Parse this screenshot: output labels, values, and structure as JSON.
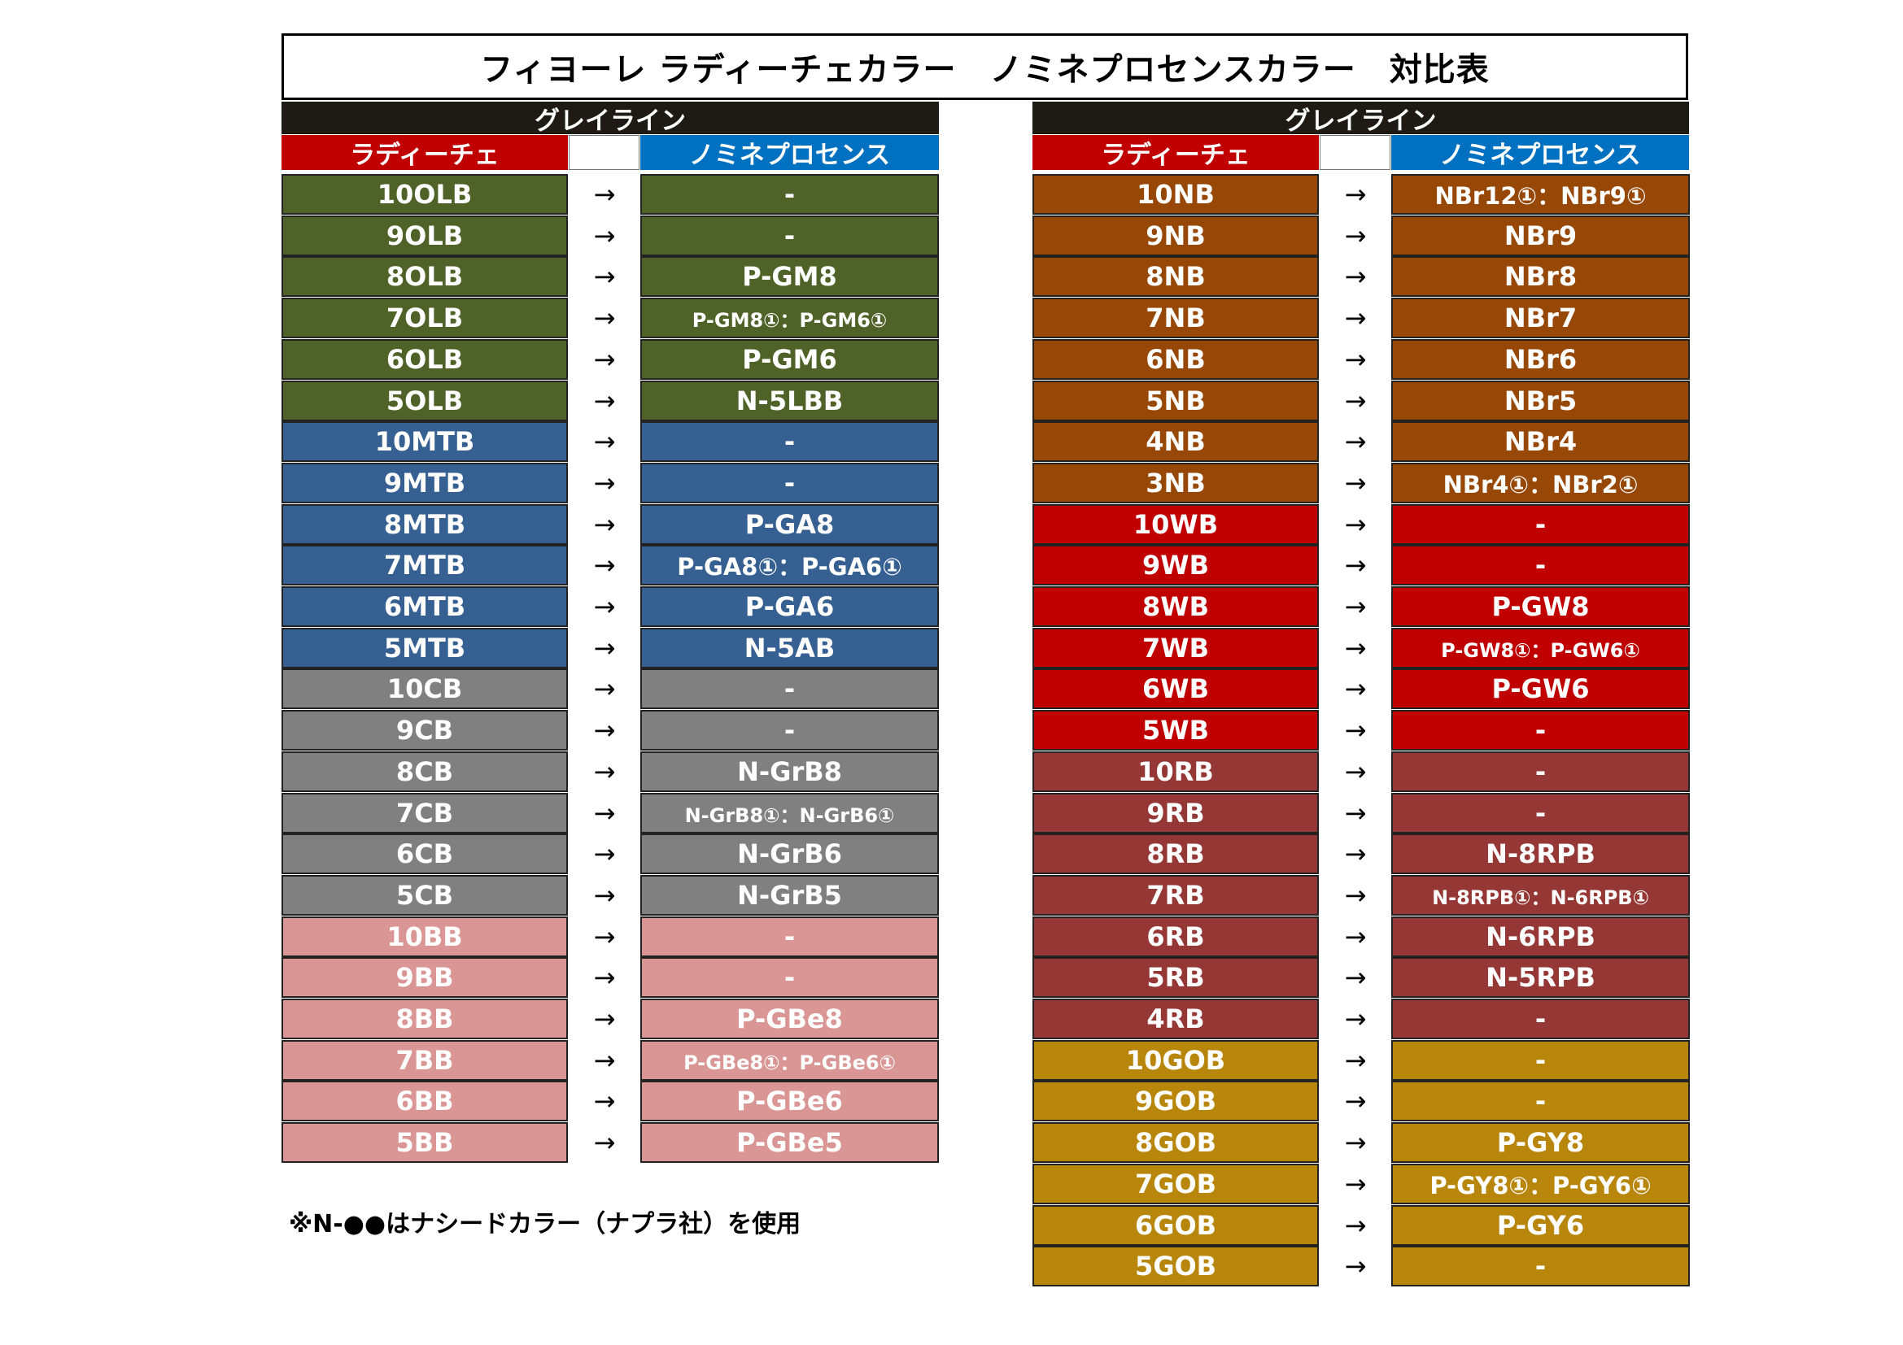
{
  "title": "フィヨーレ ラディーチェカラー　ノミネプロセンスカラー　対比表",
  "group_label": "グレイライン",
  "headers": {
    "left": "ラディーチェ",
    "right": "ノミネプロセンス"
  },
  "arrow": "→",
  "footnote": "※N-●●はナシードカラー（ナプラ社）を使用",
  "colors": {
    "OLB": "#4f6228",
    "MTB": "#366092",
    "CB": "#808080",
    "BB": "#da9694",
    "NB": "#974706",
    "WB": "#c00000",
    "RB": "#953735",
    "GOB": "#b8860b"
  },
  "left_rows": [
    {
      "from": "10OLB",
      "to": "-",
      "group": "OLB"
    },
    {
      "from": "9OLB",
      "to": "-",
      "group": "OLB"
    },
    {
      "from": "8OLB",
      "to": "P-GM8",
      "group": "OLB"
    },
    {
      "from": "7OLB",
      "to": "P-GM8①：P-GM6①",
      "group": "OLB",
      "size": "small"
    },
    {
      "from": "6OLB",
      "to": "P-GM6",
      "group": "OLB"
    },
    {
      "from": "5OLB",
      "to": "N-5LBB",
      "group": "OLB"
    },
    {
      "from": "10MTB",
      "to": "-",
      "group": "MTB"
    },
    {
      "from": "9MTB",
      "to": "-",
      "group": "MTB"
    },
    {
      "from": "8MTB",
      "to": "P-GA8",
      "group": "MTB"
    },
    {
      "from": "7MTB",
      "to": "P-GA8①：P-GA6①",
      "group": "MTB",
      "size": "medium"
    },
    {
      "from": "6MTB",
      "to": "P-GA6",
      "group": "MTB"
    },
    {
      "from": "5MTB",
      "to": "N-5AB",
      "group": "MTB"
    },
    {
      "from": "10CB",
      "to": "-",
      "group": "CB"
    },
    {
      "from": "9CB",
      "to": "-",
      "group": "CB"
    },
    {
      "from": "8CB",
      "to": "N-GrB8",
      "group": "CB"
    },
    {
      "from": "7CB",
      "to": "N-GrB8①：N-GrB6①",
      "group": "CB",
      "size": "small"
    },
    {
      "from": "6CB",
      "to": "N-GrB6",
      "group": "CB"
    },
    {
      "from": "5CB",
      "to": "N-GrB5",
      "group": "CB"
    },
    {
      "from": "10BB",
      "to": "-",
      "group": "BB"
    },
    {
      "from": "9BB",
      "to": "-",
      "group": "BB"
    },
    {
      "from": "8BB",
      "to": "P-GBe8",
      "group": "BB"
    },
    {
      "from": "7BB",
      "to": "P-GBe8①：P-GBe6①",
      "group": "BB",
      "size": "small"
    },
    {
      "from": "6BB",
      "to": "P-GBe6",
      "group": "BB"
    },
    {
      "from": "5BB",
      "to": "P-GBe5",
      "group": "BB"
    }
  ],
  "right_rows": [
    {
      "from": "10NB",
      "to": "NBr12①：NBr9①",
      "group": "NB",
      "size": "medium"
    },
    {
      "from": "9NB",
      "to": "NBr9",
      "group": "NB"
    },
    {
      "from": "8NB",
      "to": "NBr8",
      "group": "NB"
    },
    {
      "from": "7NB",
      "to": "NBr7",
      "group": "NB"
    },
    {
      "from": "6NB",
      "to": "NBr6",
      "group": "NB"
    },
    {
      "from": "5NB",
      "to": "NBr5",
      "group": "NB"
    },
    {
      "from": "4NB",
      "to": "NBr4",
      "group": "NB"
    },
    {
      "from": "3NB",
      "to": "NBr4①：NBr2①",
      "group": "NB",
      "size": "medium"
    },
    {
      "from": "10WB",
      "to": "-",
      "group": "WB"
    },
    {
      "from": "9WB",
      "to": "-",
      "group": "WB"
    },
    {
      "from": "8WB",
      "to": "P-GW8",
      "group": "WB"
    },
    {
      "from": "7WB",
      "to": "P-GW8①：P-GW6①",
      "group": "WB",
      "size": "small"
    },
    {
      "from": "6WB",
      "to": "P-GW6",
      "group": "WB"
    },
    {
      "from": "5WB",
      "to": "-",
      "group": "WB"
    },
    {
      "from": "10RB",
      "to": "-",
      "group": "RB"
    },
    {
      "from": "9RB",
      "to": "-",
      "group": "RB"
    },
    {
      "from": "8RB",
      "to": "N-8RPB",
      "group": "RB"
    },
    {
      "from": "7RB",
      "to": "N-8RPB①：N-6RPB①",
      "group": "RB",
      "size": "small"
    },
    {
      "from": "6RB",
      "to": "N-6RPB",
      "group": "RB"
    },
    {
      "from": "5RB",
      "to": "N-5RPB",
      "group": "RB"
    },
    {
      "from": "4RB",
      "to": "-",
      "group": "RB"
    },
    {
      "from": "10GOB",
      "to": "-",
      "group": "GOB"
    },
    {
      "from": "9GOB",
      "to": "-",
      "group": "GOB"
    },
    {
      "from": "8GOB",
      "to": "P-GY8",
      "group": "GOB"
    },
    {
      "from": "7GOB",
      "to": "P-GY8①：P-GY6①",
      "group": "GOB",
      "size": "medium"
    },
    {
      "from": "6GOB",
      "to": "P-GY6",
      "group": "GOB"
    },
    {
      "from": "5GOB",
      "to": "-",
      "group": "GOB"
    }
  ]
}
